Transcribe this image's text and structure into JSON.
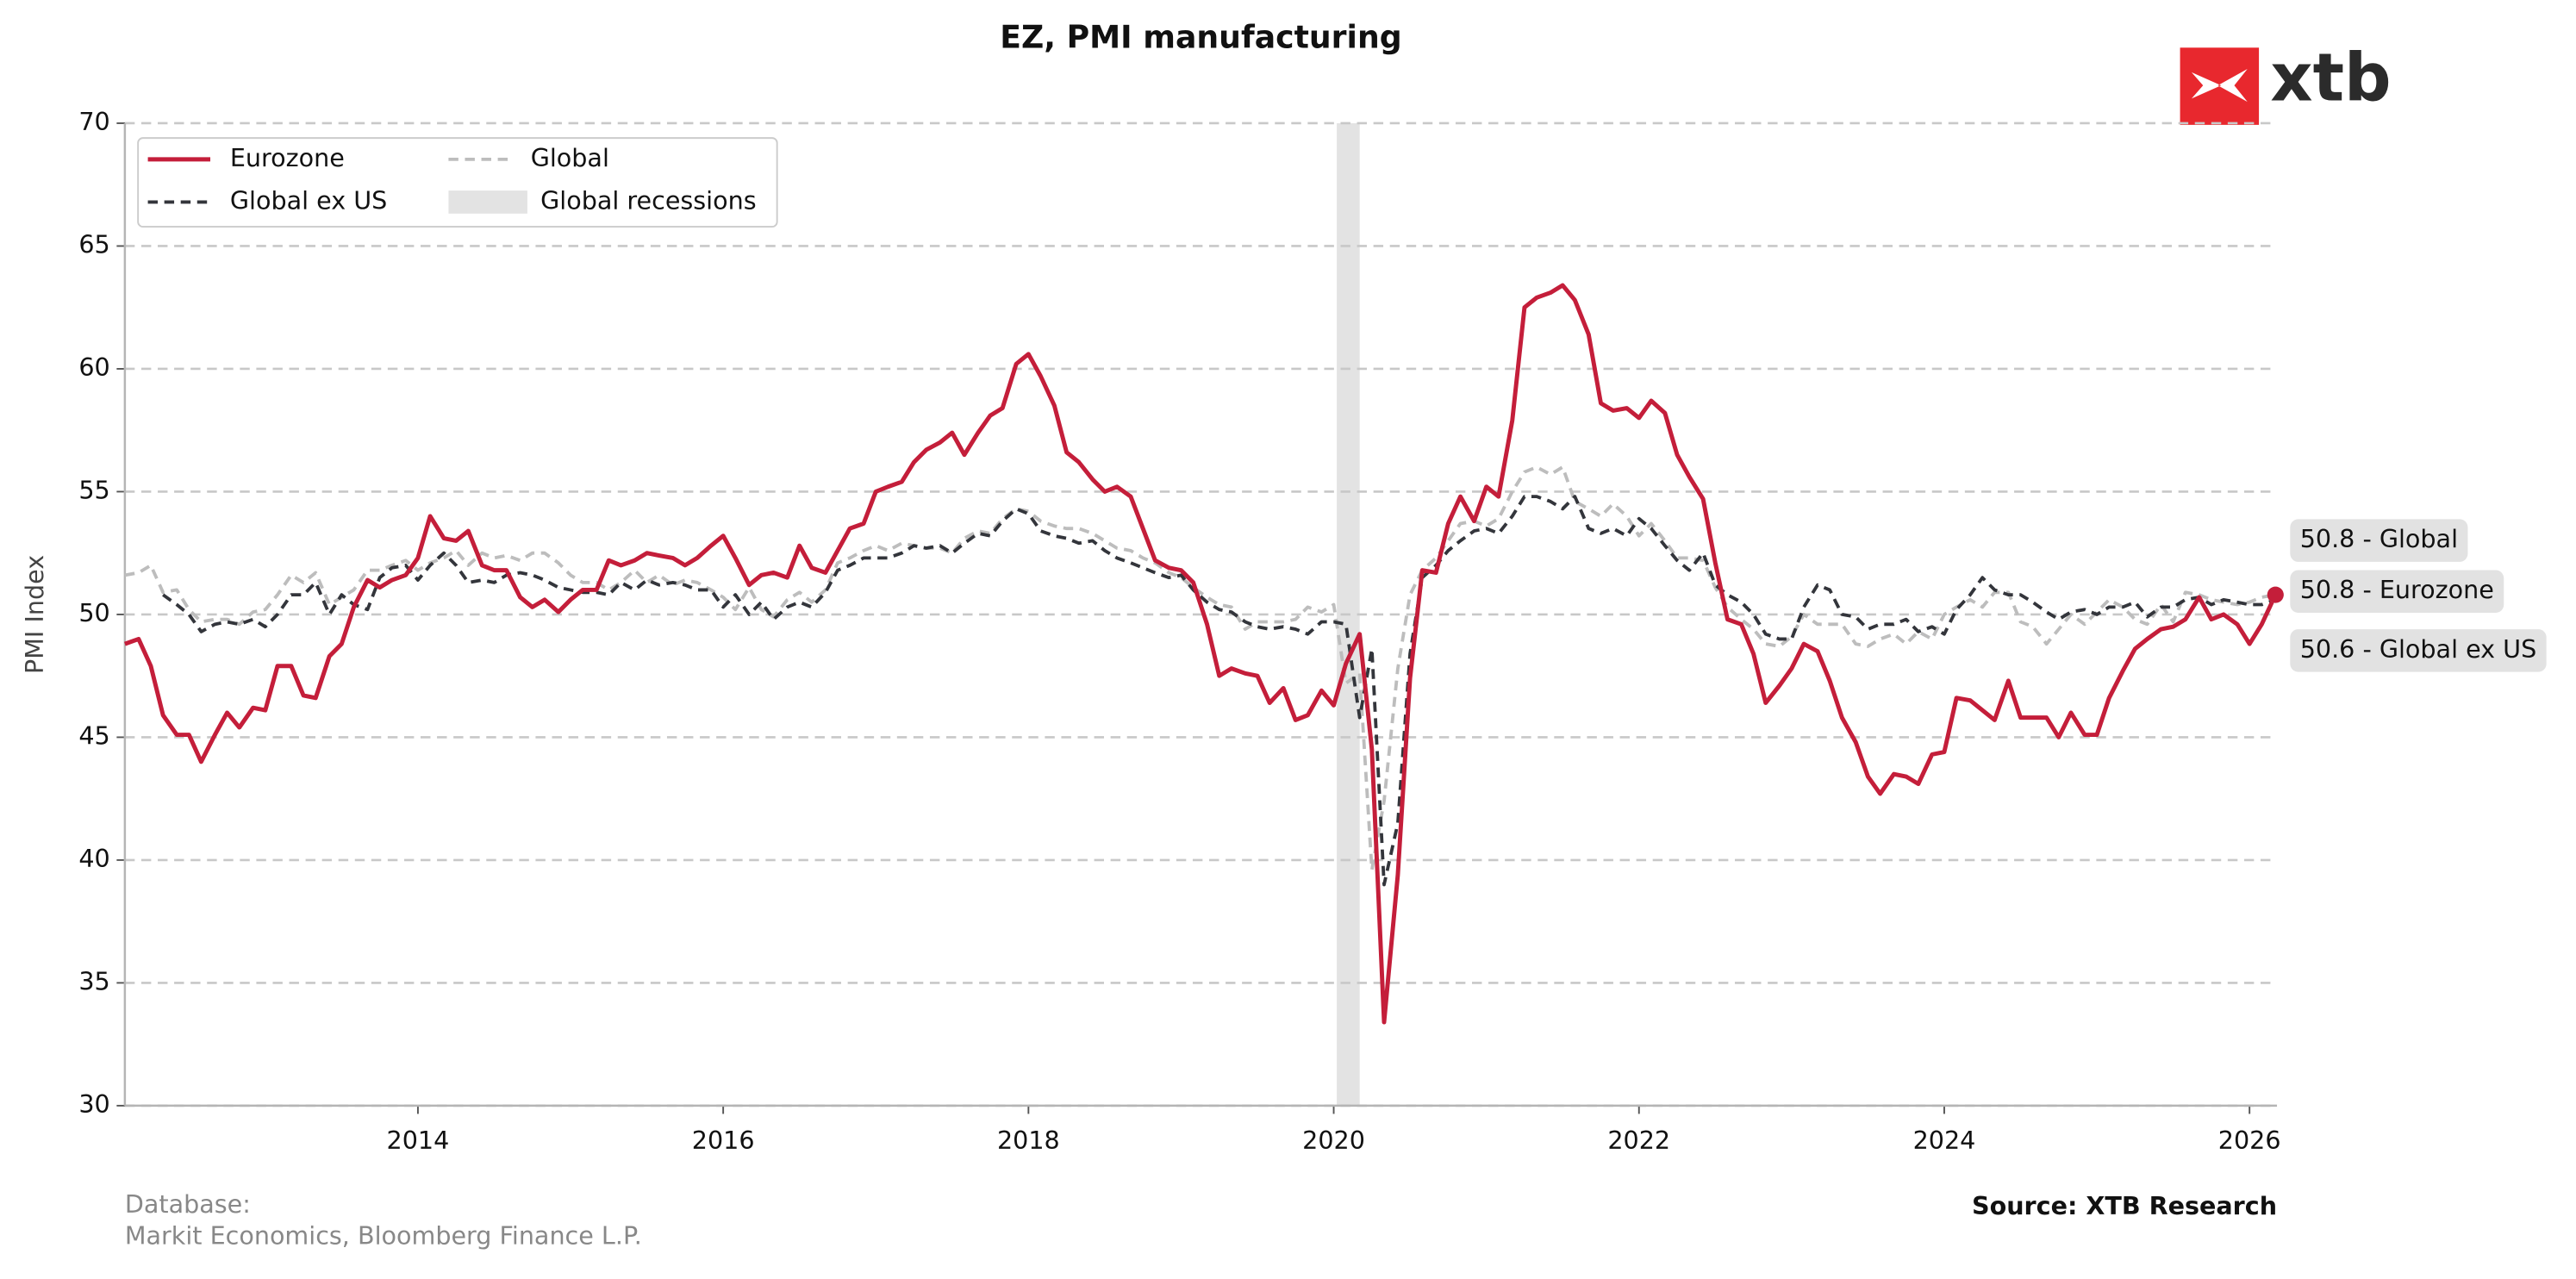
{
  "chart_data": {
    "type": "line",
    "title": "EZ, PMI manufacturing",
    "ylabel": "PMI Index",
    "logo": "xtb",
    "footnote_title": "Database:",
    "footnote": "Markit Economics, Bloomberg Finance L.P.",
    "source": "Source: XTB Research",
    "xlim": [
      2012.08,
      2026.18
    ],
    "xticks": [
      2014,
      2016,
      2018,
      2020,
      2022,
      2024,
      2026
    ],
    "ylim": [
      30,
      70
    ],
    "yticks": [
      30,
      35,
      40,
      45,
      50,
      55,
      60,
      65,
      70
    ],
    "grid": true,
    "legend_position": "upper left",
    "recessions": {
      "name": "Global recessions",
      "color": "#e3e3e3",
      "spans": [
        [
          2020.02,
          2020.17
        ]
      ]
    },
    "x": [
      2012.08,
      2012.17,
      2012.25,
      2012.33,
      2012.42,
      2012.5,
      2012.58,
      2012.67,
      2012.75,
      2012.83,
      2012.92,
      2013,
      2013.08,
      2013.17,
      2013.25,
      2013.33,
      2013.42,
      2013.5,
      2013.58,
      2013.67,
      2013.75,
      2013.83,
      2013.92,
      2014,
      2014.08,
      2014.17,
      2014.25,
      2014.33,
      2014.42,
      2014.5,
      2014.58,
      2014.67,
      2014.75,
      2014.83,
      2014.92,
      2015,
      2015.08,
      2015.17,
      2015.25,
      2015.33,
      2015.42,
      2015.5,
      2015.58,
      2015.67,
      2015.75,
      2015.83,
      2015.92,
      2016,
      2016.08,
      2016.17,
      2016.25,
      2016.33,
      2016.42,
      2016.5,
      2016.58,
      2016.67,
      2016.75,
      2016.83,
      2016.92,
      2017,
      2017.08,
      2017.17,
      2017.25,
      2017.33,
      2017.42,
      2017.5,
      2017.58,
      2017.67,
      2017.75,
      2017.83,
      2017.92,
      2018,
      2018.08,
      2018.17,
      2018.25,
      2018.33,
      2018.42,
      2018.5,
      2018.58,
      2018.67,
      2018.75,
      2018.83,
      2018.92,
      2019,
      2019.08,
      2019.17,
      2019.25,
      2019.33,
      2019.42,
      2019.5,
      2019.58,
      2019.67,
      2019.75,
      2019.83,
      2019.92,
      2020,
      2020.08,
      2020.17,
      2020.25,
      2020.33,
      2020.42,
      2020.5,
      2020.58,
      2020.67,
      2020.75,
      2020.83,
      2020.92,
      2021,
      2021.08,
      2021.17,
      2021.25,
      2021.33,
      2021.42,
      2021.5,
      2021.58,
      2021.67,
      2021.75,
      2021.83,
      2021.92,
      2022,
      2022.08,
      2022.17,
      2022.25,
      2022.33,
      2022.42,
      2022.5,
      2022.58,
      2022.67,
      2022.75,
      2022.83,
      2022.92,
      2023,
      2023.08,
      2023.17,
      2023.25,
      2023.33,
      2023.42,
      2023.5,
      2023.58,
      2023.67,
      2023.75,
      2023.83,
      2023.92,
      2024,
      2024.08,
      2024.17,
      2024.25,
      2024.33,
      2024.42,
      2024.5,
      2024.58,
      2024.67,
      2024.75,
      2024.83,
      2024.92,
      2025,
      2025.08,
      2025.17,
      2025.25,
      2025.33,
      2025.42,
      2025.5,
      2025.58,
      2025.67,
      2025.75,
      2025.83,
      2025.92,
      2026,
      2026.08,
      2026.17
    ],
    "series": [
      {
        "name": "Eurozone",
        "color": "#c41e3a",
        "dash": false,
        "width": 2.6,
        "end_label": "50.8 - Eurozone",
        "end_marker": true,
        "values": [
          48.8,
          49.0,
          47.9,
          45.9,
          45.1,
          45.1,
          44.0,
          45.1,
          46.0,
          45.4,
          46.2,
          46.1,
          47.9,
          47.9,
          46.7,
          46.6,
          48.3,
          48.8,
          50.3,
          51.4,
          51.1,
          51.4,
          51.6,
          52.3,
          54.0,
          53.1,
          53.0,
          53.4,
          52.0,
          51.8,
          51.8,
          50.7,
          50.3,
          50.6,
          50.1,
          50.6,
          51.0,
          51.0,
          52.2,
          52.0,
          52.2,
          52.5,
          52.4,
          52.3,
          52.0,
          52.3,
          52.8,
          53.2,
          52.3,
          51.2,
          51.6,
          51.7,
          51.5,
          52.8,
          51.9,
          51.7,
          52.6,
          53.5,
          53.7,
          55.0,
          55.2,
          55.4,
          56.2,
          56.7,
          57.0,
          57.4,
          56.5,
          57.4,
          58.1,
          58.4,
          60.2,
          60.6,
          59.7,
          58.5,
          56.6,
          56.2,
          55.5,
          55.0,
          55.2,
          54.8,
          53.5,
          52.2,
          51.9,
          51.8,
          51.3,
          49.6,
          47.5,
          47.8,
          47.6,
          47.5,
          46.4,
          47.0,
          45.7,
          45.9,
          46.9,
          46.3,
          48.0,
          49.2,
          44.5,
          33.4,
          39.4,
          47.4,
          51.8,
          51.7,
          53.7,
          54.8,
          53.8,
          55.2,
          54.8,
          57.9,
          62.5,
          62.9,
          63.1,
          63.4,
          62.8,
          61.4,
          58.6,
          58.3,
          58.4,
          58.0,
          58.7,
          58.2,
          56.5,
          55.6,
          54.7,
          52.1,
          49.8,
          49.6,
          48.4,
          46.4,
          47.1,
          47.8,
          48.8,
          48.5,
          47.3,
          45.8,
          44.8,
          43.4,
          42.7,
          43.5,
          43.4,
          43.1,
          44.3,
          44.4,
          46.6,
          46.5,
          46.1,
          45.7,
          47.3,
          45.8,
          45.8,
          45.8,
          45.0,
          46.0,
          45.1,
          45.1,
          46.6,
          47.7,
          48.6,
          49.0,
          49.4,
          49.5,
          49.8,
          50.7,
          49.8,
          50.0,
          49.6,
          48.8,
          49.6,
          50.8
        ]
      },
      {
        "name": "Global ex US",
        "color": "#33353b",
        "dash": true,
        "width": 2,
        "end_label": "50.6 - Global ex US",
        "end_marker": false,
        "values": [
          null,
          null,
          null,
          50.8,
          50.4,
          50.0,
          49.3,
          49.6,
          49.7,
          49.6,
          49.8,
          49.5,
          50.0,
          50.8,
          50.8,
          51.3,
          50.0,
          50.8,
          50.4,
          50.2,
          51.5,
          51.9,
          52.0,
          51.4,
          52.0,
          52.5,
          52.0,
          51.3,
          51.4,
          51.3,
          51.6,
          51.7,
          51.6,
          51.4,
          51.1,
          51.0,
          50.9,
          50.9,
          50.8,
          51.3,
          51.0,
          51.4,
          51.2,
          51.3,
          51.2,
          51.0,
          51.0,
          50.3,
          50.8,
          50.0,
          50.5,
          49.8,
          50.3,
          50.5,
          50.3,
          50.9,
          51.8,
          52.0,
          52.3,
          52.3,
          52.3,
          52.5,
          52.8,
          52.7,
          52.8,
          52.5,
          52.9,
          53.3,
          53.2,
          53.8,
          54.3,
          54.1,
          53.4,
          53.2,
          53.1,
          52.9,
          53.0,
          52.6,
          52.3,
          52.1,
          51.9,
          51.7,
          51.5,
          51.6,
          51.0,
          50.5,
          50.2,
          50.1,
          49.7,
          49.5,
          49.4,
          49.5,
          49.4,
          49.2,
          49.7,
          49.7,
          49.6,
          45.8,
          48.6,
          39.0,
          41.5,
          48.4,
          51.5,
          52.0,
          52.6,
          53.0,
          53.4,
          53.5,
          53.3,
          54.0,
          54.8,
          54.8,
          54.6,
          54.3,
          54.8,
          53.5,
          53.3,
          53.5,
          53.2,
          53.9,
          53.5,
          52.8,
          52.2,
          51.8,
          52.5,
          51.2,
          50.8,
          50.5,
          50.0,
          49.2,
          49.0,
          49.0,
          50.3,
          51.2,
          51.0,
          50.0,
          49.9,
          49.4,
          49.6,
          49.6,
          49.8,
          49.3,
          49.5,
          49.2,
          50.2,
          50.8,
          51.5,
          51.0,
          50.8,
          50.8,
          50.5,
          50.1,
          49.8,
          50.1,
          50.2,
          50.0,
          50.3,
          50.3,
          50.5,
          49.9,
          50.3,
          50.3,
          50.6,
          50.7,
          50.4,
          50.6,
          50.5,
          50.4,
          50.4,
          50.6
        ]
      },
      {
        "name": "Global",
        "color": "#bdbdbd",
        "dash": true,
        "width": 2,
        "end_label": "50.8 - Global",
        "end_marker": true,
        "values": [
          51.6,
          51.7,
          52.0,
          50.9,
          51.0,
          50.2,
          49.7,
          49.8,
          49.8,
          49.6,
          50.1,
          50.2,
          50.8,
          51.6,
          51.3,
          51.7,
          50.4,
          50.7,
          51.0,
          51.8,
          51.8,
          52.0,
          52.2,
          51.8,
          52.1,
          52.3,
          52.6,
          52.0,
          52.5,
          52.3,
          52.4,
          52.2,
          52.5,
          52.5,
          52.1,
          51.6,
          51.3,
          51.3,
          51.0,
          51.3,
          51.8,
          51.3,
          51.6,
          51.2,
          51.4,
          51.3,
          51.0,
          50.7,
          50.2,
          51.1,
          50.2,
          49.9,
          50.6,
          50.9,
          50.5,
          51.0,
          52.1,
          52.3,
          52.6,
          52.8,
          52.6,
          52.9,
          52.8,
          52.7,
          52.7,
          52.5,
          53.1,
          53.4,
          53.3,
          53.9,
          54.3,
          54.2,
          53.8,
          53.6,
          53.5,
          53.5,
          53.3,
          53.0,
          52.7,
          52.6,
          52.3,
          52.1,
          51.7,
          51.5,
          51.1,
          50.7,
          50.4,
          50.3,
          49.4,
          49.7,
          49.7,
          49.7,
          49.8,
          50.3,
          50.1,
          50.4,
          47.2,
          47.6,
          39.6,
          42.4,
          47.8,
          50.8,
          51.8,
          52.3,
          53.0,
          53.7,
          53.8,
          53.6,
          53.9,
          55.0,
          55.8,
          56.0,
          55.7,
          56.0,
          54.6,
          54.3,
          54.0,
          54.5,
          54.0,
          53.2,
          53.7,
          53.0,
          52.3,
          52.3,
          52.2,
          51.1,
          50.3,
          49.8,
          49.4,
          48.8,
          48.7,
          49.1,
          50.0,
          49.6,
          49.6,
          49.6,
          48.8,
          48.7,
          49.0,
          49.2,
          48.8,
          49.3,
          49.0,
          50.0,
          50.3,
          50.6,
          50.3,
          50.9,
          50.9,
          49.7,
          49.5,
          48.8,
          49.4,
          50.0,
          49.6,
          50.1,
          50.6,
          50.3,
          49.8,
          49.6,
          50.4,
          49.7,
          50.9,
          50.8,
          50.6,
          50.5,
          50.4,
          50.5,
          50.7,
          50.8
        ]
      }
    ]
  }
}
